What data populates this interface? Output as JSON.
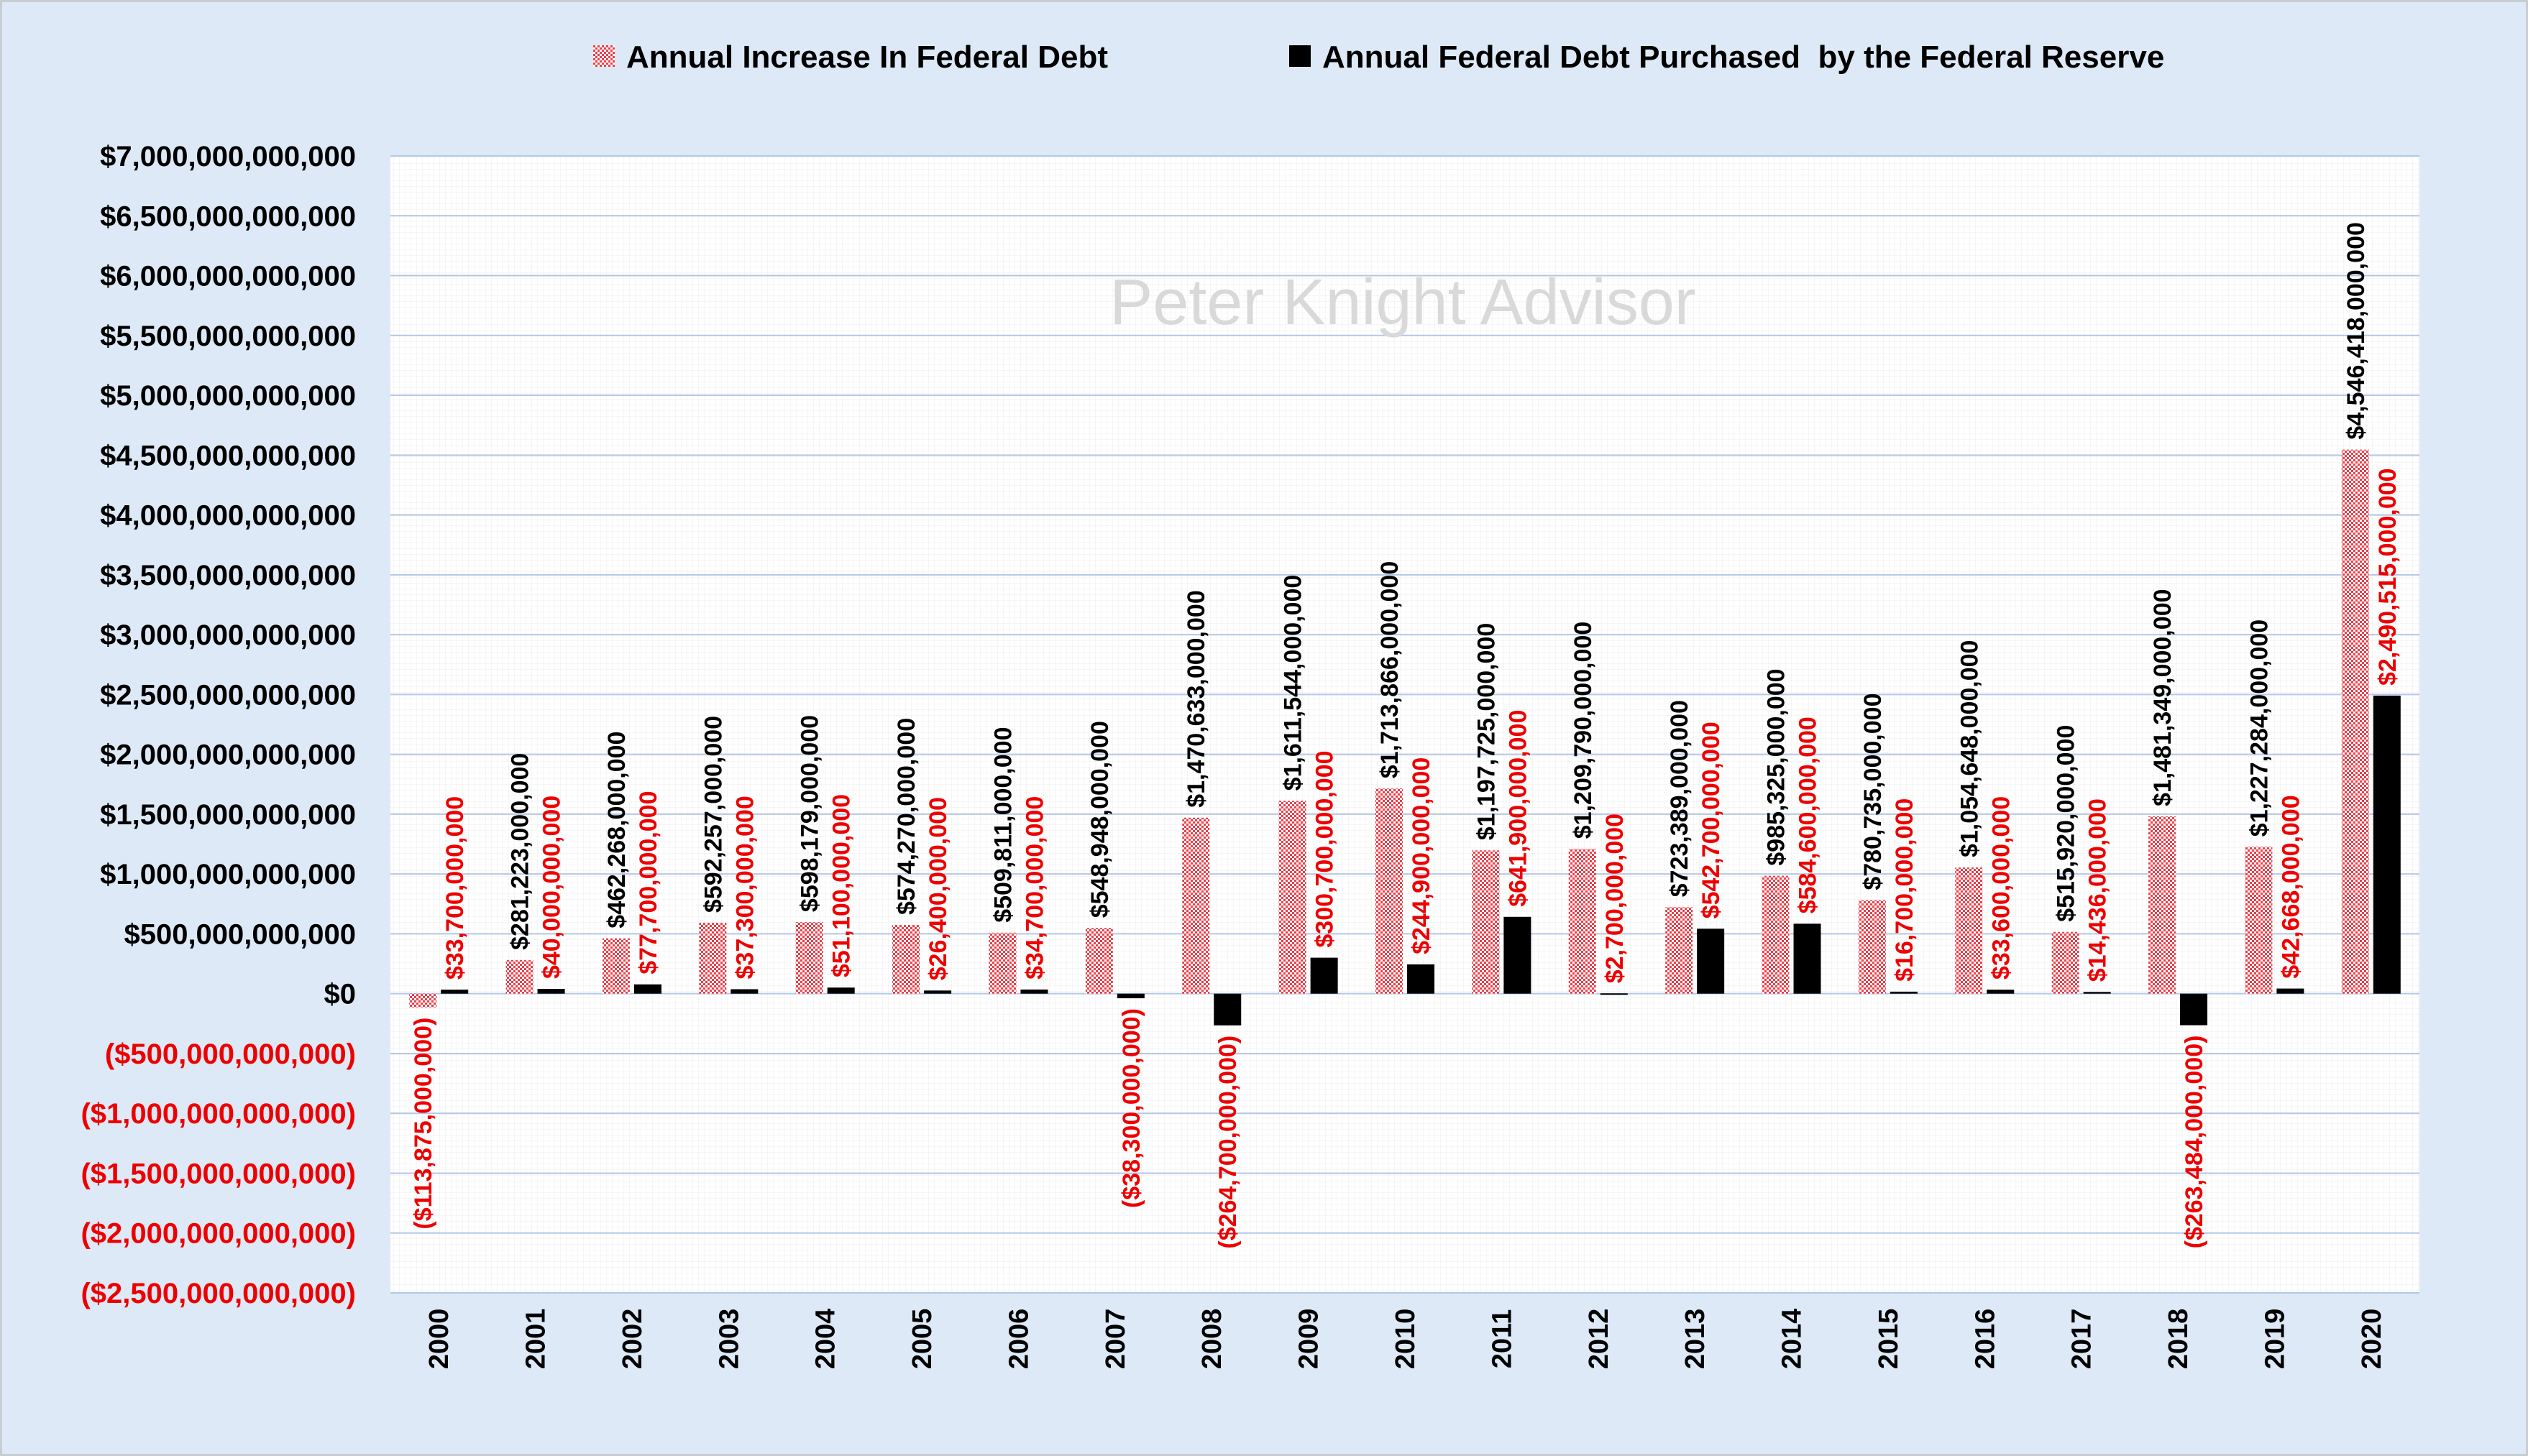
{
  "colors": {
    "background": "#dde9f6",
    "plot_background": "#ffffff",
    "debt_increase": "#e8404a",
    "fed_purchase": "#000000",
    "negative_label": "#ee0000",
    "gridline": "#b4c7e7"
  },
  "chart_data": {
    "type": "bar",
    "title": "",
    "watermark": "Peter Knight Advisor",
    "xlabel": "",
    "ylabel": "",
    "ylim": [
      -2500000000000,
      7000000000000
    ],
    "ytick_step": 500000000000,
    "legend_position": "top",
    "categories": [
      "2000",
      "2001",
      "2002",
      "2003",
      "2004",
      "2005",
      "2006",
      "2007",
      "2008",
      "2009",
      "2010",
      "2011",
      "2012",
      "2013",
      "2014",
      "2015",
      "2016",
      "2017",
      "2018",
      "2019",
      "2020"
    ],
    "yticks": [
      {
        "value": 7000000000000,
        "label": "$7,000,000,000,000"
      },
      {
        "value": 6500000000000,
        "label": "$6,500,000,000,000"
      },
      {
        "value": 6000000000000,
        "label": "$6,000,000,000,000"
      },
      {
        "value": 5500000000000,
        "label": "$5,500,000,000,000"
      },
      {
        "value": 5000000000000,
        "label": "$5,000,000,000,000"
      },
      {
        "value": 4500000000000,
        "label": "$4,500,000,000,000"
      },
      {
        "value": 4000000000000,
        "label": "$4,000,000,000,000"
      },
      {
        "value": 3500000000000,
        "label": "$3,500,000,000,000"
      },
      {
        "value": 3000000000000,
        "label": "$3,000,000,000,000"
      },
      {
        "value": 2500000000000,
        "label": "$2,500,000,000,000"
      },
      {
        "value": 2000000000000,
        "label": "$2,000,000,000,000"
      },
      {
        "value": 1500000000000,
        "label": "$1,500,000,000,000"
      },
      {
        "value": 1000000000000,
        "label": "$1,000,000,000,000"
      },
      {
        "value": 500000000000,
        "label": "$500,000,000,000"
      },
      {
        "value": 0,
        "label": "$0"
      },
      {
        "value": -500000000000,
        "label": "($500,000,000,000)"
      },
      {
        "value": -1000000000000,
        "label": "($1,000,000,000,000)"
      },
      {
        "value": -1500000000000,
        "label": "($1,500,000,000,000)"
      },
      {
        "value": -2000000000000,
        "label": "($2,000,000,000,000)"
      },
      {
        "value": -2500000000000,
        "label": "($2,500,000,000,000)"
      }
    ],
    "series": [
      {
        "name": "Annual Increase In Federal Debt",
        "values": [
          -113875000000,
          281223000000,
          462268000000,
          592257000000,
          598179000000,
          574270000000,
          509811000000,
          548948000000,
          1470633000000,
          1611544000000,
          1713866000000,
          1197725000000,
          1209790000000,
          723389000000,
          985325000000,
          780735000000,
          1054648000000,
          515920000000,
          1481349000000,
          1227284000000,
          4546418000000
        ],
        "labels": [
          "($113,875,000,000)",
          "$281,223,000,000",
          "$462,268,000,000",
          "$592,257,000,000",
          "$598,179,000,000",
          "$574,270,000,000",
          "$509,811,000,000",
          "$548,948,000,000",
          "$1,470,633,000,000",
          "$1,611,544,000,000",
          "$1,713,866,000,000",
          "$1,197,725,000,000",
          "$1,209,790,000,000",
          "$723,389,000,000",
          "$985,325,000,000",
          "$780,735,000,000",
          "$1,054,648,000,000",
          "$515,920,000,000",
          "$1,481,349,000,000",
          "$1,227,284,000,000",
          "$4,546,418,000,000"
        ]
      },
      {
        "name": "Annual Federal Debt Purchased  by the Federal Reserve",
        "values": [
          33700000000,
          40000000000,
          77700000000,
          37300000000,
          51100000000,
          26400000000,
          34700000000,
          -38300000000,
          -264700000000,
          300700000000,
          244900000000,
          641900000000,
          2700000000,
          542700000000,
          584600000000,
          16700000000,
          33600000000,
          14436000000,
          -263484000000,
          42668000000,
          2490515000000
        ],
        "labels": [
          "$33,700,000,000",
          "$40,000,000,000",
          "$77,700,000,000",
          "$37,300,000,000",
          "$51,100,000,000",
          "$26,400,000,000",
          "$34,700,000,000",
          "($38,300,000,000)",
          "($264,700,000,000)",
          "$300,700,000,000",
          "$244,900,000,000",
          "$641,900,000,000",
          "$2,700,000,000",
          "$542,700,000,000",
          "$584,600,000,000",
          "$16,700,000,000",
          "$33,600,000,000",
          "$14,436,000,000",
          "($263,484,000,000)",
          "$42,668,000,000",
          "$2,490,515,000,000"
        ]
      }
    ]
  }
}
